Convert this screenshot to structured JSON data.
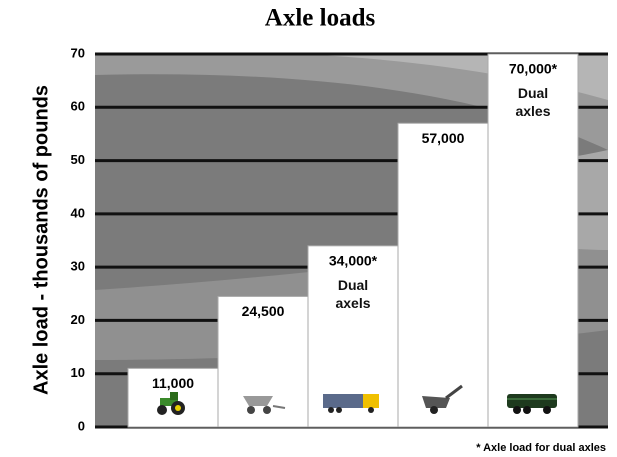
{
  "chart_data": {
    "type": "bar",
    "title": "Axle loads",
    "y_label": "Axle load - thousands of pounds",
    "categories": [
      null,
      null,
      null,
      null,
      null
    ],
    "values": [
      11,
      24.5,
      34,
      57,
      70
    ],
    "value_labels": [
      "11,000",
      "24,500",
      "34,000*",
      "57,000",
      "70,000*"
    ],
    "value_notes": [
      null,
      null,
      "Dual axels",
      null,
      "Dual axles"
    ],
    "color": "#ffffff",
    "ylim": [
      0,
      70
    ],
    "yticks": [
      0,
      10,
      20,
      30,
      40,
      50,
      60,
      70
    ],
    "grid": true,
    "footnote": "* Axle load for dual axles"
  }
}
